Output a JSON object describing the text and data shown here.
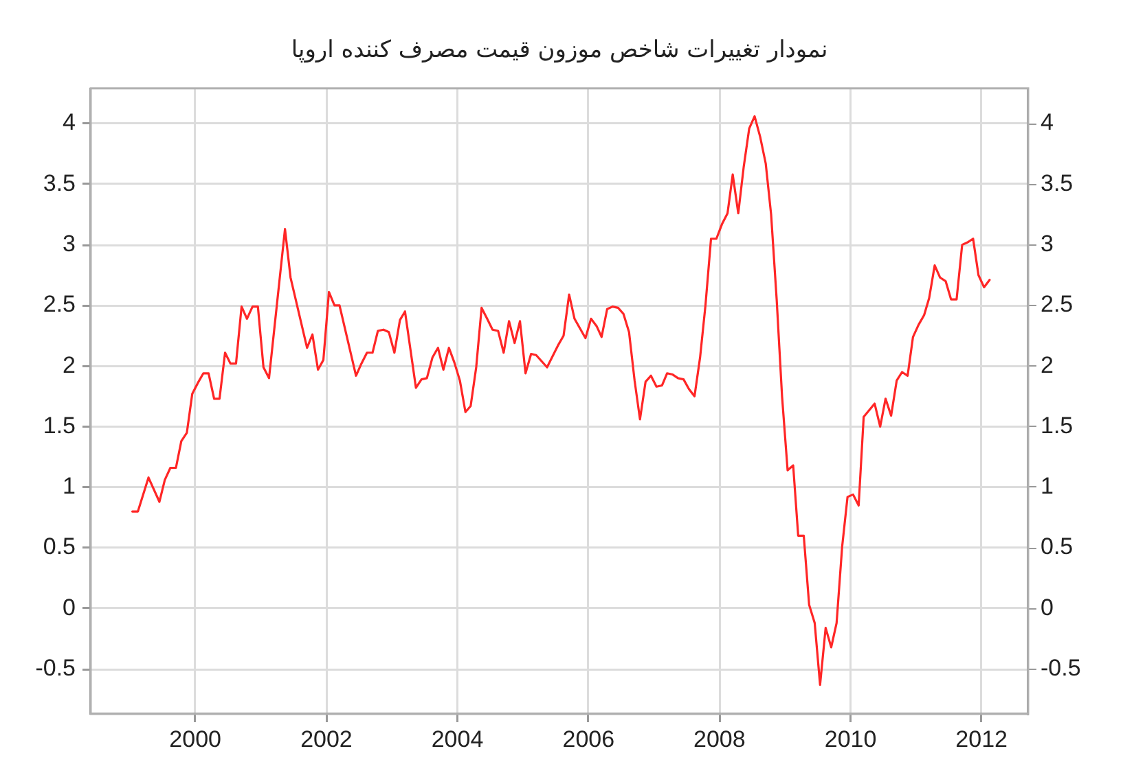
{
  "chart_data": {
    "type": "line",
    "title": "نمودار تغییرات شاخص موزون قیمت مصرف کننده اروپا",
    "x": [
      "1999-01-15",
      "1999-02-15",
      "1999-04-15",
      "1999-06-15",
      "1999-07-15",
      "1999-08-15",
      "1999-09-15",
      "1999-10-15",
      "1999-11-15",
      "1999-12-15",
      "2000-01-15",
      "2000-02-15",
      "2000-03-15",
      "2000-04-15",
      "2000-05-15",
      "2000-06-15",
      "2000-07-15",
      "2000-08-15",
      "2000-09-15",
      "2000-10-15",
      "2000-11-15",
      "2000-12-15",
      "2001-01-15",
      "2001-02-15",
      "2001-05-15",
      "2001-06-15",
      "2001-09-15",
      "2001-10-15",
      "2001-11-15",
      "2001-12-15",
      "2002-01-15",
      "2002-02-15",
      "2002-03-15",
      "2002-06-15",
      "2002-07-15",
      "2002-08-15",
      "2002-09-15",
      "2002-10-15",
      "2002-11-15",
      "2002-12-15",
      "2003-01-15",
      "2003-02-15",
      "2003-03-15",
      "2003-05-15",
      "2003-06-15",
      "2003-07-15",
      "2003-08-15",
      "2003-09-15",
      "2003-10-15",
      "2003-11-15",
      "2003-12-15",
      "2004-01-15",
      "2004-02-15",
      "2004-03-15",
      "2004-04-15",
      "2004-05-15",
      "2004-06-15",
      "2004-07-15",
      "2004-08-15",
      "2004-09-15",
      "2004-10-15",
      "2004-11-15",
      "2004-12-15",
      "2005-01-15",
      "2005-02-15",
      "2005-03-15",
      "2005-05-15",
      "2005-07-15",
      "2005-08-15",
      "2005-09-15",
      "2005-10-15",
      "2005-12-15",
      "2006-01-15",
      "2006-02-15",
      "2006-03-15",
      "2006-04-15",
      "2006-05-15",
      "2006-06-15",
      "2006-07-15",
      "2006-08-15",
      "2006-09-15",
      "2006-10-15",
      "2006-11-15",
      "2006-12-15",
      "2007-01-15",
      "2007-02-15",
      "2007-03-15",
      "2007-04-15",
      "2007-05-15",
      "2007-06-15",
      "2007-07-15",
      "2007-08-15",
      "2007-09-15",
      "2007-10-15",
      "2007-11-15",
      "2007-12-15",
      "2008-01-15",
      "2008-02-15",
      "2008-03-15",
      "2008-04-15",
      "2008-05-15",
      "2008-06-15",
      "2008-07-15",
      "2008-08-15",
      "2008-09-15",
      "2008-10-15",
      "2008-11-15",
      "2008-12-15",
      "2009-01-15",
      "2009-02-15",
      "2009-03-15",
      "2009-04-15",
      "2009-05-15",
      "2009-06-15",
      "2009-07-15",
      "2009-08-15",
      "2009-09-15",
      "2009-10-15",
      "2009-11-15",
      "2009-12-15",
      "2010-01-15",
      "2010-02-15",
      "2010-03-15",
      "2010-05-15",
      "2010-06-15",
      "2010-07-15",
      "2010-08-15",
      "2010-09-15",
      "2010-10-15",
      "2010-11-15",
      "2010-12-15",
      "2011-01-15",
      "2011-02-15",
      "2011-03-15",
      "2011-04-15",
      "2011-05-15",
      "2011-06-15",
      "2011-07-15",
      "2011-08-15",
      "2011-09-15",
      "2011-10-15",
      "2011-11-15",
      "2011-12-15",
      "2012-01-15",
      "2012-02-15"
    ],
    "values": [
      0.8,
      0.8,
      1.08,
      0.88,
      1.06,
      1.16,
      1.16,
      1.38,
      1.45,
      1.77,
      1.86,
      1.94,
      1.94,
      1.73,
      1.73,
      2.11,
      2.02,
      2.02,
      2.49,
      2.39,
      2.49,
      2.49,
      1.99,
      1.9,
      3.13,
      2.73,
      2.15,
      2.26,
      1.97,
      2.05,
      2.61,
      2.5,
      2.5,
      1.92,
      2.02,
      2.11,
      2.11,
      2.29,
      2.3,
      2.28,
      2.11,
      2.38,
      2.45,
      1.82,
      1.89,
      1.9,
      2.07,
      2.15,
      1.97,
      2.15,
      2.03,
      1.88,
      1.62,
      1.67,
      1.99,
      2.48,
      2.39,
      2.3,
      2.29,
      2.11,
      2.37,
      2.19,
      2.37,
      1.94,
      2.1,
      2.09,
      1.99,
      2.17,
      2.25,
      2.59,
      2.39,
      2.23,
      2.39,
      2.33,
      2.24,
      2.47,
      2.49,
      2.48,
      2.43,
      2.28,
      1.88,
      1.56,
      1.87,
      1.92,
      1.83,
      1.84,
      1.94,
      1.93,
      1.9,
      1.89,
      1.81,
      1.75,
      2.07,
      2.5,
      3.05,
      3.05,
      3.17,
      3.26,
      3.58,
      3.26,
      3.64,
      3.96,
      4.06,
      3.89,
      3.67,
      3.25,
      2.55,
      1.75,
      1.14,
      1.18,
      0.6,
      0.6,
      0.03,
      -0.12,
      -0.63,
      -0.16,
      -0.32,
      -0.12,
      0.51,
      0.92,
      0.94,
      0.85,
      1.58,
      1.69,
      1.5,
      1.73,
      1.59,
      1.88,
      1.95,
      1.92,
      2.24,
      2.34,
      2.42,
      2.56,
      2.83,
      2.73,
      2.7,
      2.55,
      2.55,
      3.0,
      3.02,
      3.05,
      2.75,
      2.65,
      2.71
    ],
    "color": "#ff2626",
    "xlim": [
      "1998-05-28",
      "2012-09-17"
    ],
    "xticks": [
      "2000",
      "2002",
      "2004",
      "2006",
      "2008",
      "2010",
      "2012"
    ],
    "ylim": [
      -0.87,
      4.29
    ],
    "yticks": [
      -0.5,
      0,
      0.5,
      1,
      1.5,
      2,
      2.5,
      3,
      3.5,
      4
    ],
    "y2lim": [
      -0.87,
      4.29
    ],
    "y2ticks": [
      -0.5,
      0,
      0.5,
      1,
      1.5,
      2,
      2.5,
      3,
      3.5,
      4
    ],
    "grid": true,
    "marker": "none",
    "line_style": "solid"
  }
}
